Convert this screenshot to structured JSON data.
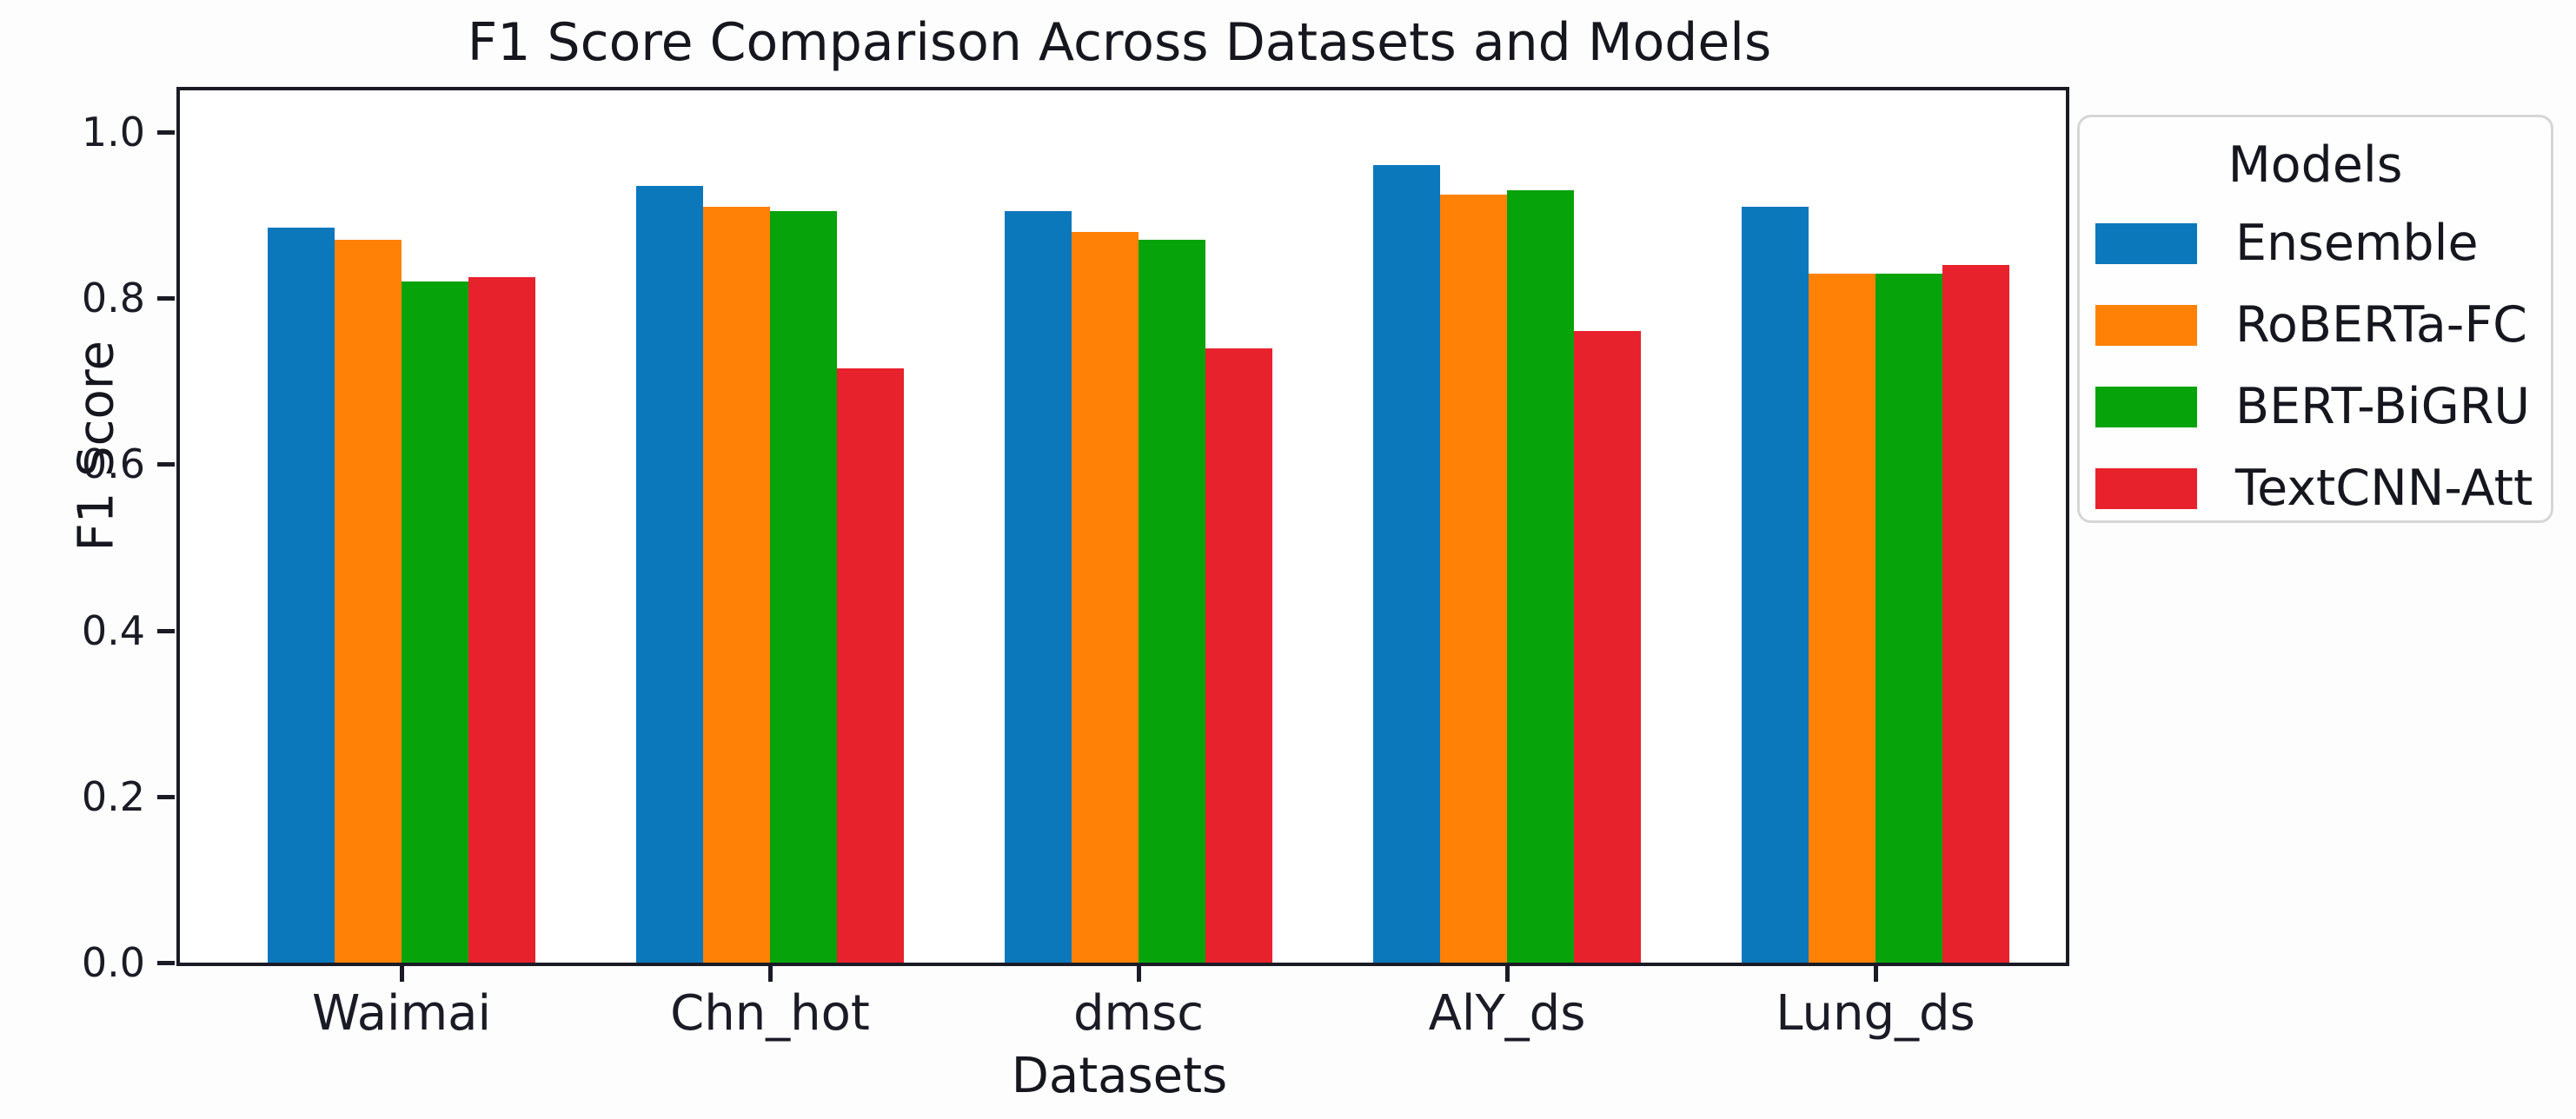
{
  "chart_data": {
    "type": "bar",
    "title": "F1 Score Comparison Across Datasets and Models",
    "xlabel": "Datasets",
    "ylabel": "F1 Score",
    "categories": [
      "Waimai",
      "Chn_hot",
      "dmsc",
      "AlY_ds",
      "Lung_ds"
    ],
    "series": [
      {
        "name": "Ensemble",
        "color": "#0b78bc",
        "values": [
          0.885,
          0.935,
          0.905,
          0.96,
          0.91
        ]
      },
      {
        "name": "RoBERTa-FC",
        "color": "#ff8207",
        "values": [
          0.87,
          0.91,
          0.88,
          0.925,
          0.83
        ]
      },
      {
        "name": "BERT-BiGRU",
        "color": "#07a30a",
        "values": [
          0.82,
          0.905,
          0.87,
          0.93,
          0.83
        ]
      },
      {
        "name": "TextCNN-Att",
        "color": "#e8222d",
        "values": [
          0.825,
          0.715,
          0.74,
          0.76,
          0.84
        ]
      }
    ],
    "yticks": [
      "0.0",
      "0.2",
      "0.4",
      "0.6",
      "0.8",
      "1.0"
    ],
    "ylim": [
      0.0,
      1.05
    ],
    "grid": false,
    "legend_title": "Models",
    "legend_position": "upper right, outside plot"
  }
}
